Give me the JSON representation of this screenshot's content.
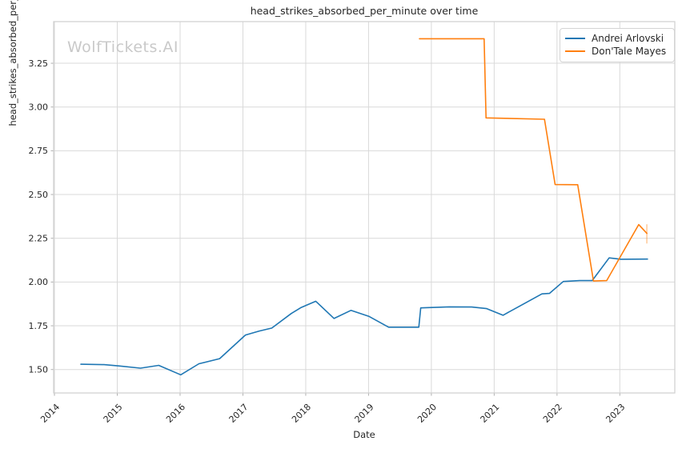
{
  "chart_data": {
    "type": "line",
    "title": "head_strikes_absorbed_per_minute over time",
    "xlabel": "Date",
    "ylabel": "head_strikes_absorbed_per_minute",
    "watermark": "WolfTickets.AI",
    "grid": true,
    "legend_position": "upper right",
    "xlim": [
      2013.987,
      2023.875
    ],
    "ylim": [
      1.366,
      3.488
    ],
    "xticks": [
      {
        "v": 2014,
        "label": "2014"
      },
      {
        "v": 2015,
        "label": "2015"
      },
      {
        "v": 2016,
        "label": "2016"
      },
      {
        "v": 2017,
        "label": "2017"
      },
      {
        "v": 2018,
        "label": "2018"
      },
      {
        "v": 2019,
        "label": "2019"
      },
      {
        "v": 2020,
        "label": "2020"
      },
      {
        "v": 2021,
        "label": "2021"
      },
      {
        "v": 2022,
        "label": "2022"
      },
      {
        "v": 2023,
        "label": "2023"
      }
    ],
    "yticks": [
      {
        "v": 1.5,
        "label": "1.50"
      },
      {
        "v": 1.75,
        "label": "1.75"
      },
      {
        "v": 2.0,
        "label": "2.00"
      },
      {
        "v": 2.25,
        "label": "2.25"
      },
      {
        "v": 2.5,
        "label": "2.50"
      },
      {
        "v": 2.75,
        "label": "2.75"
      },
      {
        "v": 3.0,
        "label": "3.00"
      },
      {
        "v": 3.25,
        "label": "3.25"
      }
    ],
    "series": [
      {
        "name": "Andrei Arlovski",
        "color": "#1f77b4",
        "points": [
          [
            2014.42,
            1.53
          ],
          [
            2014.79,
            1.528
          ],
          [
            2015.04,
            1.52
          ],
          [
            2015.37,
            1.508
          ],
          [
            2015.66,
            1.524
          ],
          [
            2016.01,
            1.47
          ],
          [
            2016.3,
            1.533
          ],
          [
            2016.63,
            1.562
          ],
          [
            2017.04,
            1.697
          ],
          [
            2017.26,
            1.72
          ],
          [
            2017.46,
            1.737
          ],
          [
            2017.77,
            1.82
          ],
          [
            2017.93,
            1.855
          ],
          [
            2018.16,
            1.89
          ],
          [
            2018.45,
            1.792
          ],
          [
            2018.72,
            1.838
          ],
          [
            2019.01,
            1.803
          ],
          [
            2019.32,
            1.742
          ],
          [
            2019.8,
            1.742
          ],
          [
            2019.83,
            1.852
          ],
          [
            2020.28,
            1.858
          ],
          [
            2020.64,
            1.857
          ],
          [
            2020.88,
            1.848
          ],
          [
            2021.14,
            1.81
          ],
          [
            2021.76,
            1.932
          ],
          [
            2021.88,
            1.935
          ],
          [
            2022.1,
            2.003
          ],
          [
            2022.36,
            2.008
          ],
          [
            2022.56,
            2.008
          ],
          [
            2022.83,
            2.138
          ],
          [
            2023.02,
            2.13
          ],
          [
            2023.44,
            2.131
          ]
        ]
      },
      {
        "name": "Don'Tale Mayes",
        "color": "#ff7f0e",
        "points": [
          [
            2019.81,
            3.39
          ],
          [
            2020.84,
            3.39
          ],
          [
            2020.87,
            2.938
          ],
          [
            2021.8,
            2.93
          ],
          [
            2021.97,
            2.557
          ],
          [
            2022.33,
            2.556
          ],
          [
            2022.58,
            2.006
          ],
          [
            2022.79,
            2.008
          ],
          [
            2023.3,
            2.328
          ],
          [
            2023.43,
            2.278
          ]
        ],
        "endcap": {
          "x": 2023.43,
          "y1": 2.22,
          "y2": 2.33,
          "opacity": 0.4
        }
      }
    ],
    "style": {
      "grid_color": "#d9d9d9",
      "spine_color": "#cfcfcf",
      "tick_color": "#b0b0b0",
      "tick_label_color": "#262626",
      "line_width": 1.6
    }
  }
}
